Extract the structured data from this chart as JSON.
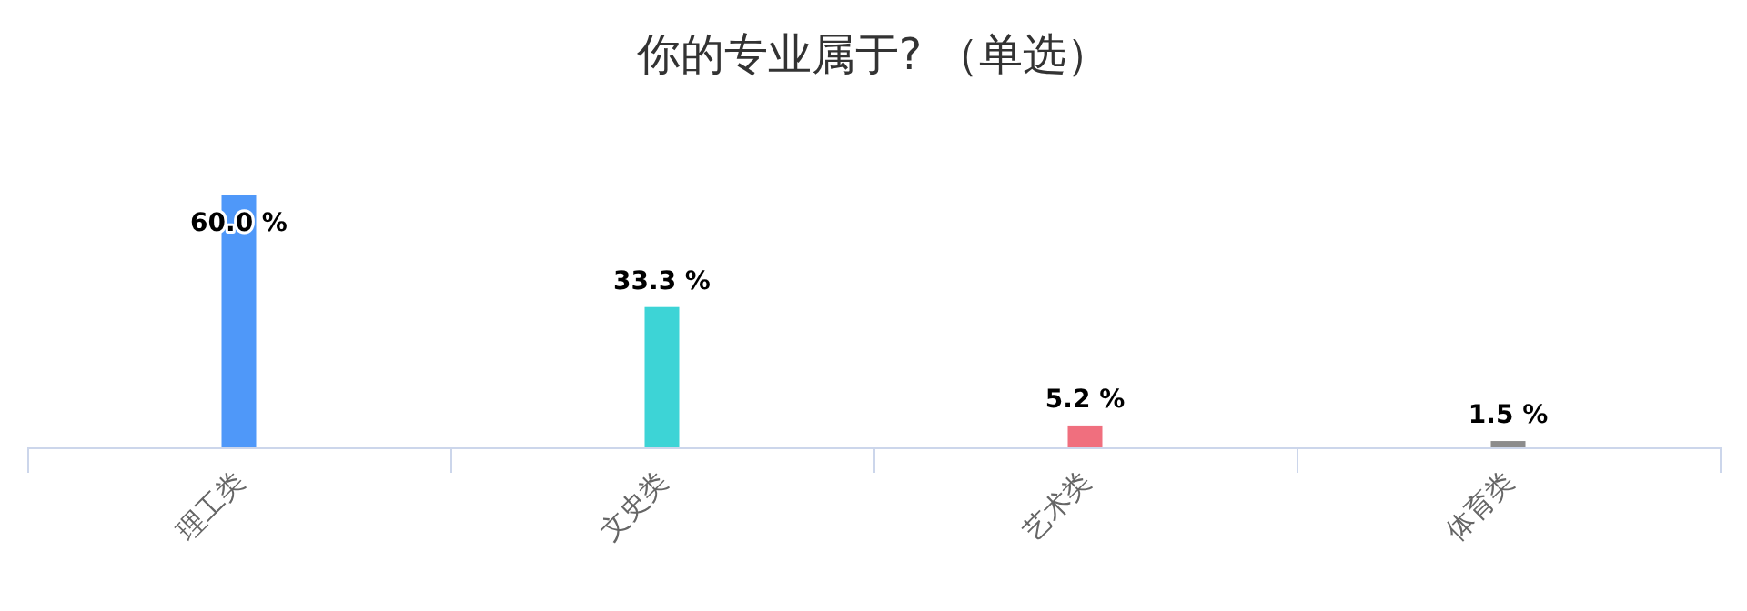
{
  "chart_data": {
    "type": "bar",
    "title": "你的专业属于? （单选）",
    "categories": [
      "理工类",
      "文史类",
      "艺术类",
      "体育类"
    ],
    "values": [
      60.0,
      33.3,
      5.2,
      1.5
    ],
    "colors": [
      "#4f98f9",
      "#3dd4d6",
      "#f06f7e",
      "#8c8c8c"
    ],
    "value_labels": [
      "60.0 %",
      "33.3 %",
      "5.2 %",
      "1.5 %"
    ]
  }
}
